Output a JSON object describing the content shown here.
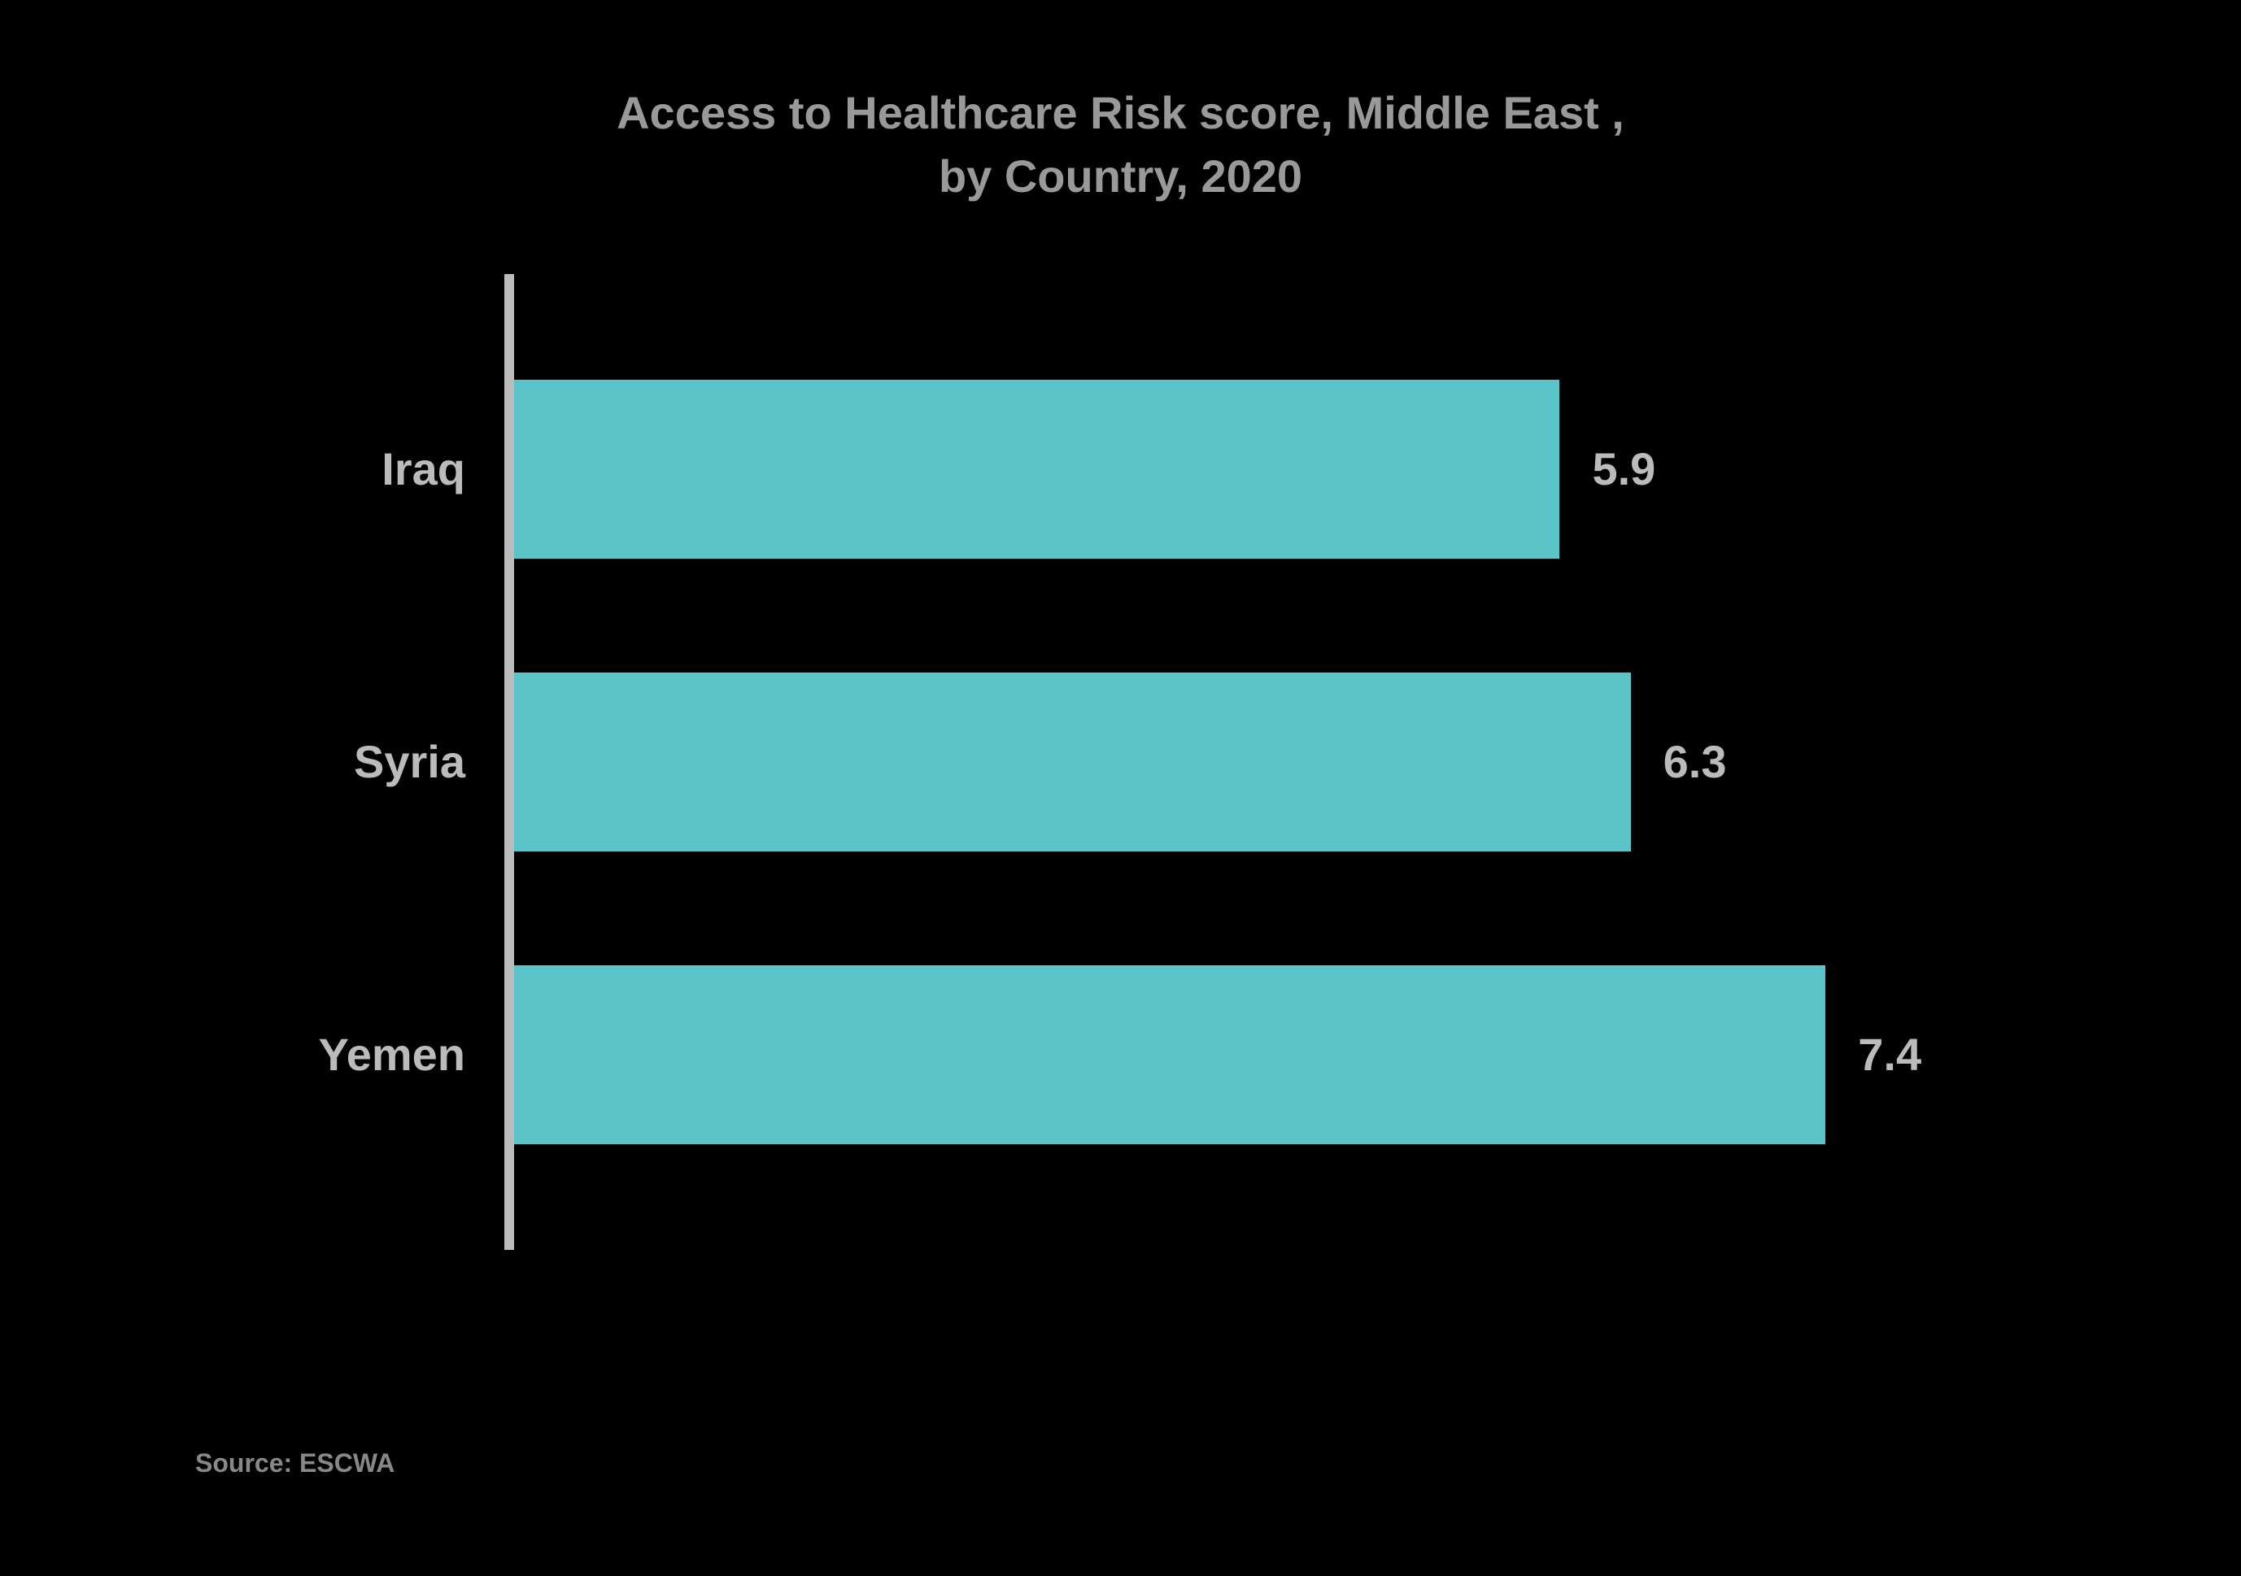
{
  "chart": {
    "type": "bar-horizontal",
    "title_line1": "Access to Healthcare Risk score, Middle East ,",
    "title_line2": "by Country, 2020",
    "title_color": "#999999",
    "title_fontsize": 56,
    "background_color": "#000000",
    "axis_color": "#bbbbbb",
    "label_color": "#bbbbbb",
    "value_color": "#bbbbbb",
    "label_fontsize": 56,
    "value_fontsize": 56,
    "bar_color": "#5bc4c8",
    "xmax": 8.0,
    "data": [
      {
        "category": "Iraq",
        "value": 5.9
      },
      {
        "category": "Syria",
        "value": 6.3
      },
      {
        "category": "Yemen",
        "value": 7.4
      }
    ],
    "source_label": "Source: ESCWA",
    "source_color": "#888888",
    "source_fontsize": 32
  }
}
